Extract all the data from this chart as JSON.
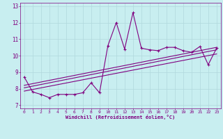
{
  "title": "",
  "xlabel": "Windchill (Refroidissement éolien,°C)",
  "ylabel": "",
  "xlim": [
    -0.5,
    23.5
  ],
  "ylim": [
    6.8,
    13.2
  ],
  "yticks": [
    7,
    8,
    9,
    10,
    11,
    12,
    13
  ],
  "xticks": [
    0,
    1,
    2,
    3,
    4,
    5,
    6,
    7,
    8,
    9,
    10,
    11,
    12,
    13,
    14,
    15,
    16,
    17,
    18,
    19,
    20,
    21,
    22,
    23
  ],
  "bg_color": "#c8eef0",
  "line_color": "#800080",
  "grid_color": "#b0d8dc",
  "main_data_x": [
    0,
    1,
    2,
    3,
    4,
    5,
    6,
    7,
    8,
    9,
    10,
    11,
    12,
    13,
    14,
    15,
    16,
    17,
    18,
    19,
    20,
    21,
    22,
    23
  ],
  "main_data_y": [
    8.7,
    7.8,
    7.65,
    7.45,
    7.65,
    7.65,
    7.65,
    7.75,
    8.35,
    7.75,
    10.6,
    12.0,
    10.4,
    12.6,
    10.45,
    10.35,
    10.3,
    10.5,
    10.5,
    10.3,
    10.2,
    10.55,
    9.45,
    10.45
  ],
  "trend1_x": [
    0,
    23
  ],
  "trend1_y": [
    8.05,
    10.35
  ],
  "trend2_x": [
    0,
    23
  ],
  "trend2_y": [
    7.85,
    10.1
  ],
  "trend3_x": [
    0,
    23
  ],
  "trend3_y": [
    8.2,
    10.5
  ]
}
